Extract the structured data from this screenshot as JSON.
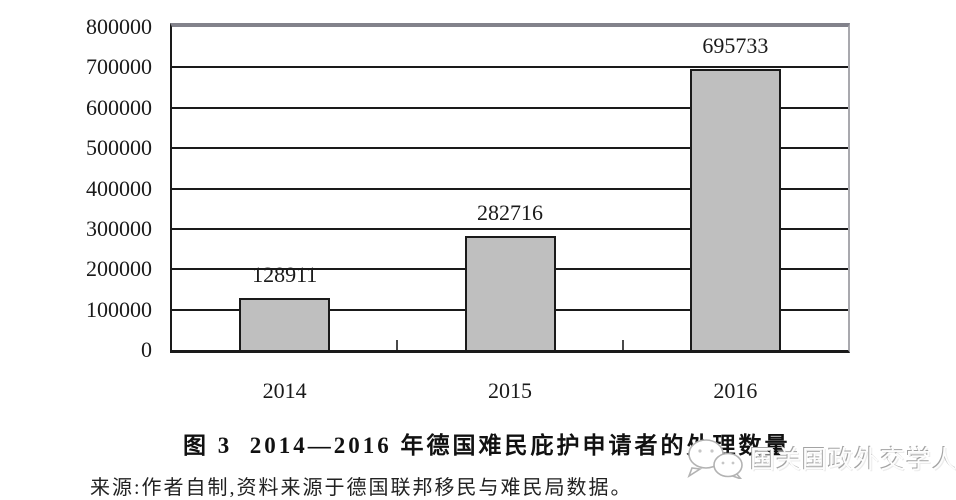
{
  "figure": {
    "caption": "图 3  2014—2016 年德国难民庇护申请者的处理数量",
    "source_note": "来源:作者自制,资料来源于德国联邦移民与难民局数据。"
  },
  "watermark": {
    "icon": "wechat-icon",
    "text": "国关国政外交学人"
  },
  "chart_data": {
    "type": "bar",
    "title": "图 3  2014—2016 年德国难民庇护申请者的处理数量",
    "categories": [
      "2014",
      "2015",
      "2016"
    ],
    "values": [
      128911,
      282716,
      695733
    ],
    "data_labels": [
      "128911",
      "282716",
      "695733"
    ],
    "xlabel": "",
    "ylabel": "",
    "ylim": [
      0,
      800000
    ],
    "ytick_step": 100000,
    "ytick_labels": [
      "0",
      "100000",
      "200000",
      "300000",
      "400000",
      "500000",
      "600000",
      "700000",
      "800000"
    ],
    "grid": "horizontal",
    "legend": "none",
    "bar_fill_color": "#bfbfbf",
    "bar_border_color": "#1a1a1a",
    "gridline_color": "#1a1a1a",
    "plot_top_border_color": "#82828b",
    "plot_right_border_color": "#a9a9ae"
  }
}
